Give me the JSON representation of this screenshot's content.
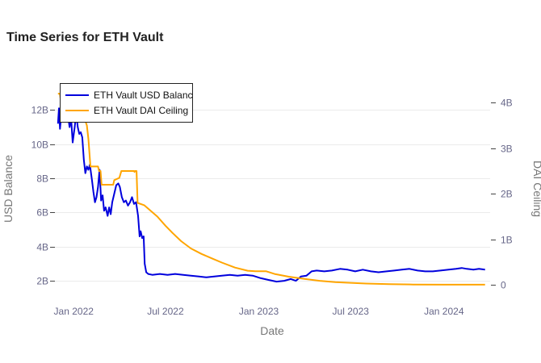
{
  "chart_data": {
    "type": "line",
    "title": "Time Series for ETH Vault",
    "xlabel": "Date",
    "ylabel": "USD Balance",
    "y2label": "DAI Ceiling",
    "x_ticks": [
      "Jan 2022",
      "Jul 2022",
      "Jan 2023",
      "Jul 2023",
      "Jan 2024"
    ],
    "x_tick_dates": [
      "2022-01-01",
      "2022-07-01",
      "2023-01-01",
      "2023-07-01",
      "2024-01-01"
    ],
    "xlim": [
      "2021-11-25",
      "2024-04-01"
    ],
    "y_ticks": [
      "2B",
      "4B",
      "6B",
      "8B",
      "10B",
      "12B"
    ],
    "y_tick_values": [
      2000000000,
      4000000000,
      6000000000,
      8000000000,
      10000000000,
      12000000000
    ],
    "ylim": [
      1200000000,
      13200000000
    ],
    "y2_ticks": [
      "0",
      "1B",
      "2B",
      "3B",
      "4B"
    ],
    "y2_tick_values": [
      0,
      1000000000,
      2000000000,
      3000000000,
      4000000000
    ],
    "y2lim": [
      -210000000,
      4290000000
    ],
    "grid": true,
    "legend": {
      "position": "top-left",
      "entries": [
        "ETH Vault USD Balance",
        "ETH Vault DAI Ceiling"
      ]
    },
    "series": [
      {
        "name": "ETH Vault USD Balance",
        "axis": "y",
        "color": "#0000dd",
        "points": [
          [
            "2021-12-01",
            11200000000.0
          ],
          [
            "2021-12-03",
            12100000000.0
          ],
          [
            "2021-12-05",
            10900000000.0
          ],
          [
            "2021-12-08",
            11900000000.0
          ],
          [
            "2021-12-12",
            11500000000.0
          ],
          [
            "2021-12-16",
            12100000000.0
          ],
          [
            "2021-12-20",
            11800000000.0
          ],
          [
            "2021-12-24",
            11000000000.0
          ],
          [
            "2021-12-27",
            11500000000.0
          ],
          [
            "2021-12-30",
            10100000000.0
          ],
          [
            "2022-01-03",
            11000000000.0
          ],
          [
            "2022-01-06",
            11800000000.0
          ],
          [
            "2022-01-09",
            11000000000.0
          ],
          [
            "2022-01-12",
            10600000000.0
          ],
          [
            "2022-01-15",
            10700000000.0
          ],
          [
            "2022-01-18",
            10400000000.0
          ],
          [
            "2022-01-21",
            9100000000.0
          ],
          [
            "2022-01-24",
            8300000000.0
          ],
          [
            "2022-01-27",
            8700000000.0
          ],
          [
            "2022-01-30",
            8500000000.0
          ],
          [
            "2022-02-02",
            8800000000.0
          ],
          [
            "2022-02-06",
            7900000000.0
          ],
          [
            "2022-02-09",
            7200000000.0
          ],
          [
            "2022-02-12",
            6600000000.0
          ],
          [
            "2022-02-15",
            6900000000.0
          ],
          [
            "2022-02-18",
            7500000000.0
          ],
          [
            "2022-02-21",
            8500000000.0
          ],
          [
            "2022-02-24",
            6700000000.0
          ],
          [
            "2022-02-27",
            7000000000.0
          ],
          [
            "2022-03-02",
            6100000000.0
          ],
          [
            "2022-03-05",
            6300000000.0
          ],
          [
            "2022-03-09",
            5800000000.0
          ],
          [
            "2022-03-12",
            6300000000.0
          ],
          [
            "2022-03-15",
            5900000000.0
          ],
          [
            "2022-03-18",
            6600000000.0
          ],
          [
            "2022-03-22",
            7100000000.0
          ],
          [
            "2022-03-26",
            7600000000.0
          ],
          [
            "2022-03-30",
            7700000000.0
          ],
          [
            "2022-04-02",
            7500000000.0
          ],
          [
            "2022-04-06",
            6900000000.0
          ],
          [
            "2022-04-10",
            6600000000.0
          ],
          [
            "2022-04-14",
            6700000000.0
          ],
          [
            "2022-04-18",
            6400000000.0
          ],
          [
            "2022-04-22",
            6600000000.0
          ],
          [
            "2022-04-26",
            6900000000.0
          ],
          [
            "2022-04-30",
            6500000000.0
          ],
          [
            "2022-05-04",
            6600000000.0
          ],
          [
            "2022-05-08",
            5800000000.0
          ],
          [
            "2022-05-11",
            4600000000.0
          ],
          [
            "2022-05-13",
            4900000000.0
          ],
          [
            "2022-05-16",
            4500000000.0
          ],
          [
            "2022-05-19",
            4600000000.0
          ],
          [
            "2022-05-21",
            3000000000.0
          ],
          [
            "2022-05-24",
            2500000000.0
          ],
          [
            "2022-05-28",
            2400000000.0
          ],
          [
            "2022-06-05",
            2350000000.0
          ],
          [
            "2022-06-20",
            2400000000.0
          ],
          [
            "2022-07-05",
            2350000000.0
          ],
          [
            "2022-07-20",
            2400000000.0
          ],
          [
            "2022-08-05",
            2350000000.0
          ],
          [
            "2022-08-20",
            2300000000.0
          ],
          [
            "2022-09-05",
            2250000000.0
          ],
          [
            "2022-09-20",
            2200000000.0
          ],
          [
            "2022-10-05",
            2250000000.0
          ],
          [
            "2022-10-20",
            2300000000.0
          ],
          [
            "2022-11-05",
            2350000000.0
          ],
          [
            "2022-11-20",
            2300000000.0
          ],
          [
            "2022-12-05",
            2350000000.0
          ],
          [
            "2022-12-20",
            2300000000.0
          ],
          [
            "2023-01-05",
            2150000000.0
          ],
          [
            "2023-01-20",
            2050000000.0
          ],
          [
            "2023-02-05",
            1950000000.0
          ],
          [
            "2023-02-20",
            2000000000.0
          ],
          [
            "2023-03-05",
            2100000000.0
          ],
          [
            "2023-03-15",
            2000000000.0
          ],
          [
            "2023-03-25",
            2250000000.0
          ],
          [
            "2023-04-05",
            2300000000.0
          ],
          [
            "2023-04-15",
            2550000000.0
          ],
          [
            "2023-04-25",
            2600000000.0
          ],
          [
            "2023-05-10",
            2550000000.0
          ],
          [
            "2023-05-25",
            2600000000.0
          ],
          [
            "2023-06-10",
            2700000000.0
          ],
          [
            "2023-06-25",
            2650000000.0
          ],
          [
            "2023-07-10",
            2550000000.0
          ],
          [
            "2023-07-25",
            2650000000.0
          ],
          [
            "2023-08-10",
            2550000000.0
          ],
          [
            "2023-08-25",
            2500000000.0
          ],
          [
            "2023-09-10",
            2550000000.0
          ],
          [
            "2023-09-25",
            2600000000.0
          ],
          [
            "2023-10-10",
            2650000000.0
          ],
          [
            "2023-10-25",
            2700000000.0
          ],
          [
            "2023-11-10",
            2600000000.0
          ],
          [
            "2023-11-25",
            2550000000.0
          ],
          [
            "2023-12-10",
            2550000000.0
          ],
          [
            "2023-12-25",
            2600000000.0
          ],
          [
            "2024-01-10",
            2650000000.0
          ],
          [
            "2024-01-25",
            2700000000.0
          ],
          [
            "2024-02-05",
            2750000000.0
          ],
          [
            "2024-02-15",
            2700000000.0
          ],
          [
            "2024-02-28",
            2650000000.0
          ],
          [
            "2024-03-10",
            2700000000.0
          ],
          [
            "2024-03-22",
            2650000000.0
          ]
        ]
      },
      {
        "name": "ETH Vault DAI Ceiling",
        "axis": "y2",
        "color": "#ffa500",
        "points": [
          [
            "2021-12-01",
            4200000000.0
          ],
          [
            "2021-12-05",
            4200000000.0
          ],
          [
            "2021-12-06",
            4100000000.0
          ],
          [
            "2022-01-13",
            4100000000.0
          ],
          [
            "2022-01-14",
            3900000000.0
          ],
          [
            "2022-01-21",
            3700000000.0
          ],
          [
            "2022-01-27",
            3500000000.0
          ],
          [
            "2022-01-30",
            3200000000.0
          ],
          [
            "2022-02-03",
            2600000000.0
          ],
          [
            "2022-02-18",
            2600000000.0
          ],
          [
            "2022-02-20",
            2500000000.0
          ],
          [
            "2022-02-23",
            2500000000.0
          ],
          [
            "2022-02-25",
            2200000000.0
          ],
          [
            "2022-03-20",
            2200000000.0
          ],
          [
            "2022-03-22",
            2300000000.0
          ],
          [
            "2022-04-01",
            2350000000.0
          ],
          [
            "2022-04-05",
            2500000000.0
          ],
          [
            "2022-04-30",
            2500000000.0
          ],
          [
            "2022-05-01",
            2480000000.0
          ],
          [
            "2022-05-02",
            2500000000.0
          ],
          [
            "2022-05-05",
            2500000000.0
          ],
          [
            "2022-05-07",
            1800000000.0
          ],
          [
            "2022-05-20",
            1750000000.0
          ],
          [
            "2022-06-15",
            1500000000.0
          ],
          [
            "2022-07-01",
            1300000000.0
          ],
          [
            "2022-07-15",
            1140000000.0
          ],
          [
            "2022-08-01",
            960000000.0
          ],
          [
            "2022-08-20",
            800000000.0
          ],
          [
            "2022-09-10",
            680000000.0
          ],
          [
            "2022-10-01",
            580000000.0
          ],
          [
            "2022-10-20",
            490000000.0
          ],
          [
            "2022-11-15",
            380000000.0
          ],
          [
            "2022-12-10",
            310000000.0
          ],
          [
            "2022-12-25",
            300000000.0
          ],
          [
            "2023-01-15",
            300000000.0
          ],
          [
            "2023-02-01",
            240000000.0
          ],
          [
            "2023-03-01",
            180000000.0
          ],
          [
            "2023-04-01",
            130000000.0
          ],
          [
            "2023-05-01",
            90000000.0
          ],
          [
            "2023-06-01",
            60000000.0
          ],
          [
            "2023-07-01",
            45000000.0
          ],
          [
            "2023-08-01",
            30000000.0
          ],
          [
            "2023-09-15",
            15000000.0
          ],
          [
            "2023-11-01",
            8000000.0
          ],
          [
            "2024-01-01",
            5000000.0
          ],
          [
            "2024-03-22",
            4000000.0
          ]
        ]
      }
    ]
  }
}
